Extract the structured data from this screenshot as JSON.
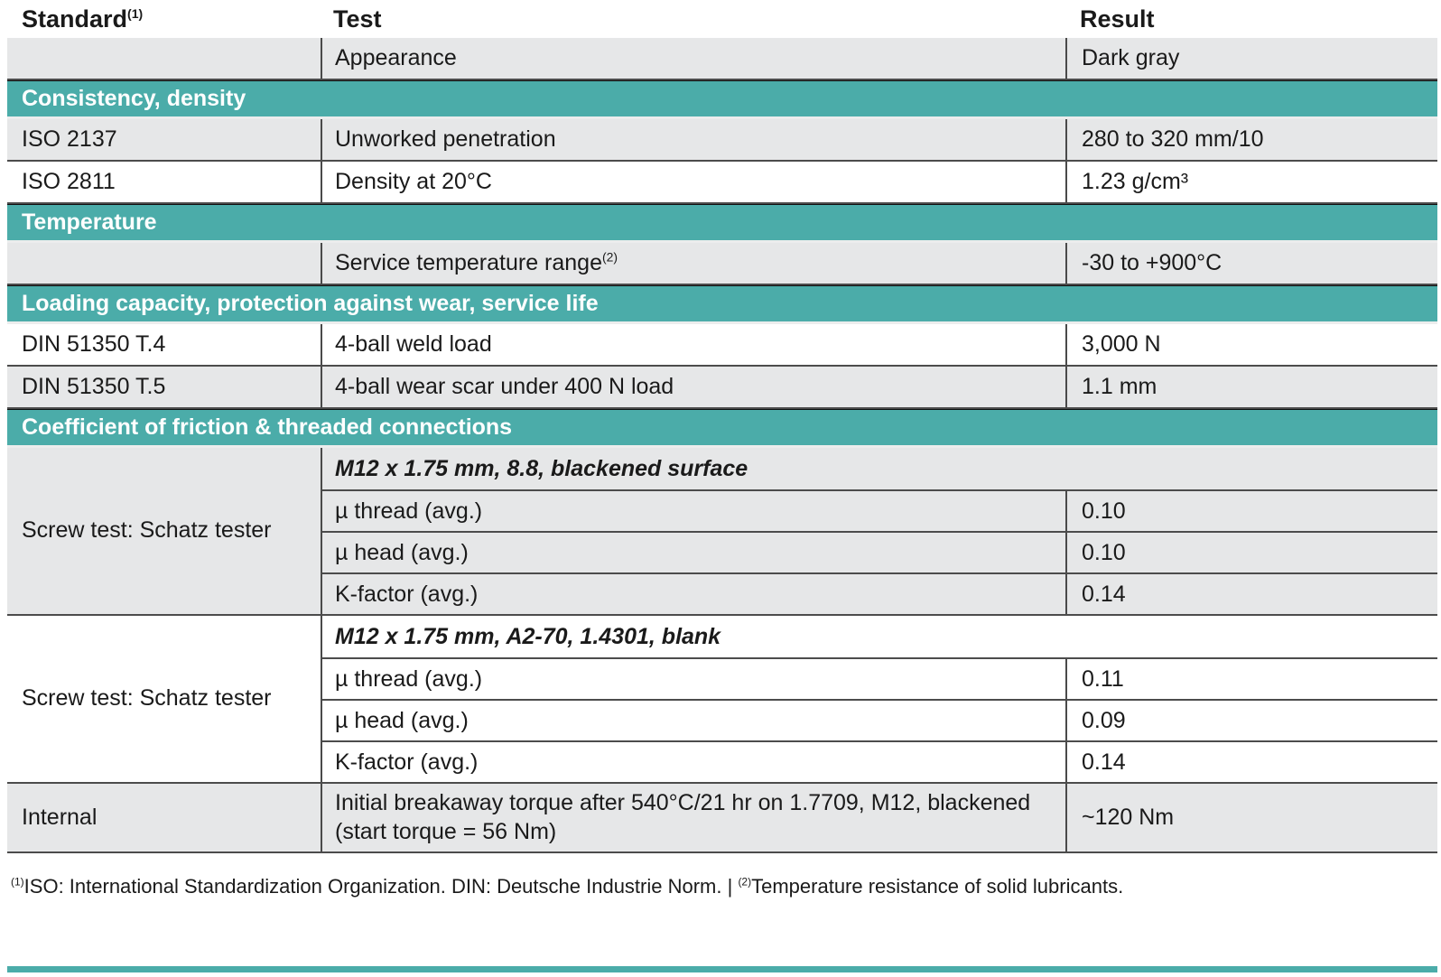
{
  "colors": {
    "accent": "#4BACA9",
    "row_gray": "#E6E7E8",
    "section_text": "#FFFFFF",
    "body_text": "#1A1A1A"
  },
  "table": {
    "columns": [
      {
        "label": "Standard",
        "sup": "(1)"
      },
      {
        "label": "Test",
        "sup": ""
      },
      {
        "label": "Result",
        "sup": ""
      }
    ],
    "rows": [
      {
        "type": "data",
        "shade": "gray",
        "standard": "",
        "test": "Appearance",
        "test_sup": "",
        "result": "Dark gray"
      },
      {
        "type": "section",
        "label": "Consistency, density"
      },
      {
        "type": "data",
        "shade": "gray",
        "standard": "ISO 2137",
        "test": "Unworked penetration",
        "test_sup": "",
        "result": "280 to 320 mm/10"
      },
      {
        "type": "data",
        "shade": "white",
        "standard": "ISO 2811",
        "test": "Density at 20°C",
        "test_sup": "",
        "result": "1.23 g/cm³"
      },
      {
        "type": "section",
        "label": "Temperature"
      },
      {
        "type": "data",
        "shade": "gray",
        "standard": "",
        "test": "Service temperature range",
        "test_sup": "(2)",
        "result": "-30 to +900°C"
      },
      {
        "type": "section",
        "label": "Loading capacity, protection against wear, service life"
      },
      {
        "type": "data",
        "shade": "white",
        "standard": "DIN 51350 T.4",
        "test": "4-ball weld load",
        "test_sup": "",
        "result": "3,000 N"
      },
      {
        "type": "data",
        "shade": "gray",
        "standard": "DIN 51350 T.5",
        "test": "4-ball wear scar under 400 N load",
        "test_sup": "",
        "result": "1.1 mm"
      },
      {
        "type": "section",
        "label": "Coefficient of friction & threaded connections"
      },
      {
        "type": "group",
        "shade": "gray",
        "standard": "Screw test: Schatz tester",
        "header": "M12 x 1.75 mm, 8.8, blackened surface",
        "items": [
          {
            "test": "µ thread (avg.)",
            "result": "0.10"
          },
          {
            "test": "µ head (avg.)",
            "result": "0.10"
          },
          {
            "test": "K-factor (avg.)",
            "result": "0.14"
          }
        ]
      },
      {
        "type": "group",
        "shade": "white",
        "standard": "Screw test: Schatz tester",
        "header": "M12 x 1.75 mm, A2-70, 1.4301, blank",
        "items": [
          {
            "test": "µ thread (avg.)",
            "result": "0.11"
          },
          {
            "test": "µ head (avg.)",
            "result": "0.09"
          },
          {
            "test": "K-factor (avg.)",
            "result": "0.14"
          }
        ]
      },
      {
        "type": "data",
        "shade": "gray",
        "tall": true,
        "standard": "Internal",
        "test": "Initial breakaway torque after 540°C/21 hr on 1.7709, M12, blackened (start torque = 56 Nm)",
        "test_sup": "",
        "result": "~120 Nm"
      }
    ]
  },
  "footnote": {
    "parts": [
      {
        "sup": "(1)",
        "text": "ISO: International Standardization Organization. DIN: Deutsche Industrie Norm. | "
      },
      {
        "sup": "(2)",
        "text": "Temperature resistance of solid lubricants."
      }
    ]
  }
}
